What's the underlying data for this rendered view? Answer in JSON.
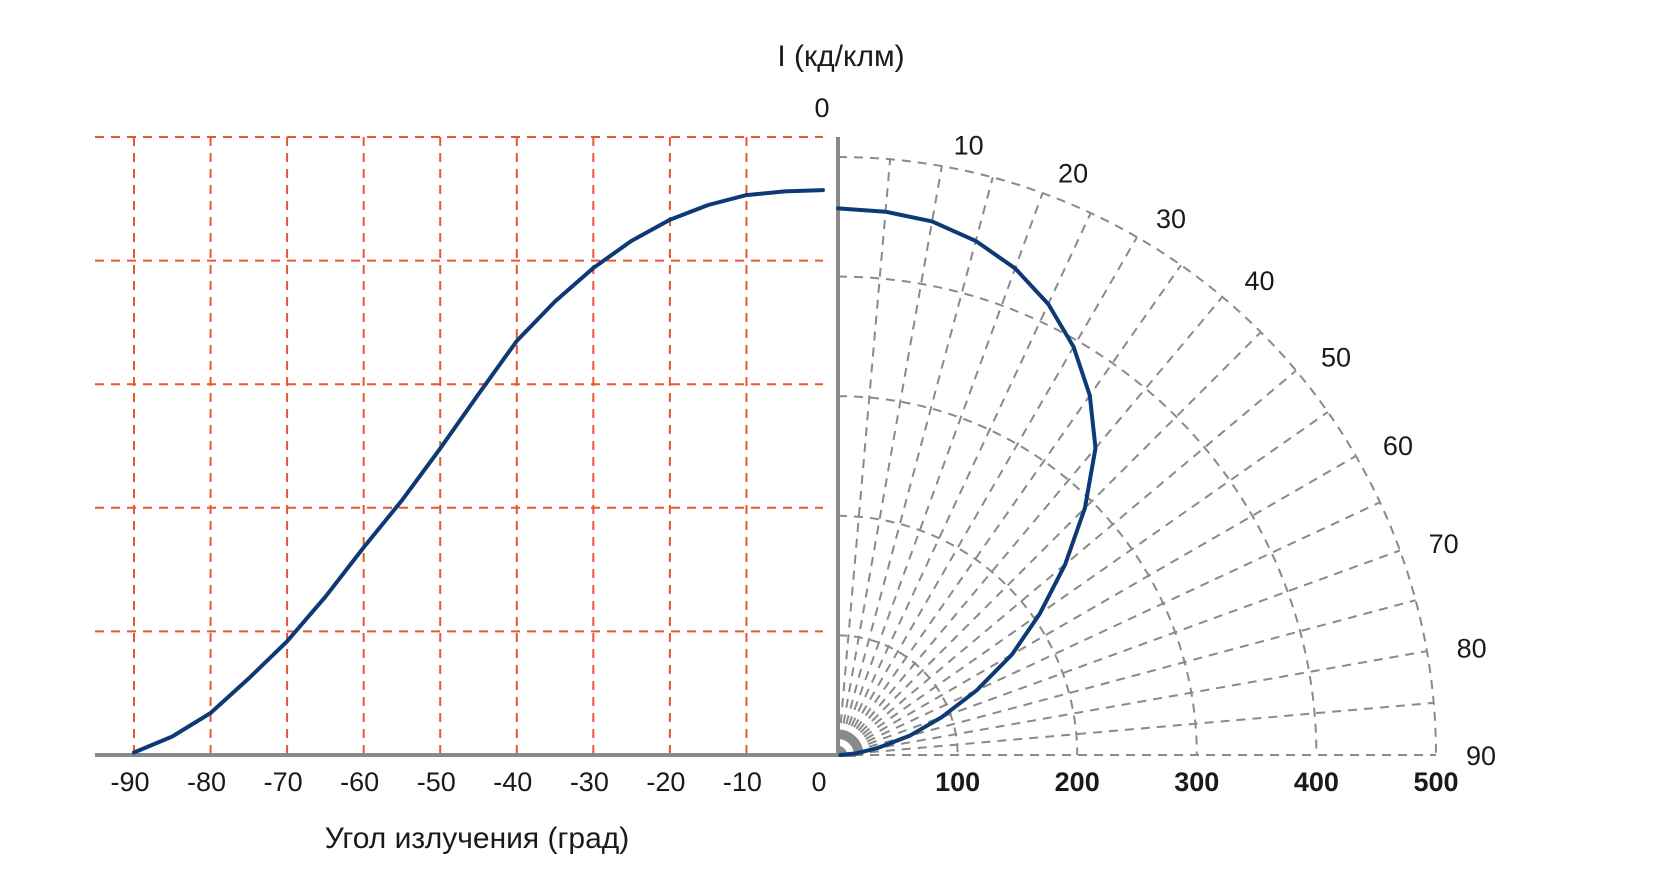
{
  "colors": {
    "curve": "#0d3a75",
    "cartesian_grid": "#e8572e",
    "polar_grid": "#8a8a8a",
    "axis": "#8a8a8a"
  },
  "chart_data": {
    "type": "line",
    "polar_and_cartesian": true,
    "ylabel": "I (кд/клм)",
    "xlabel": "Угол излучения (град)",
    "x_ticks": [
      "-90",
      "-80",
      "-70",
      "-60",
      "-50",
      "-40",
      "-30",
      "-20",
      "-10",
      "0"
    ],
    "radial_ticks": [
      "100",
      "200",
      "300",
      "400",
      "500"
    ],
    "angle_labels": [
      "0",
      "10",
      "20",
      "30",
      "40",
      "50",
      "60",
      "70",
      "80",
      "90"
    ],
    "xlim": [
      -90,
      0
    ],
    "ylim": [
      0,
      500
    ],
    "rlim": [
      0,
      500
    ],
    "cartesian_grid_x": [
      -90,
      -80,
      -70,
      -60,
      -50,
      -40,
      -30,
      -20,
      -10
    ],
    "cartesian_grid_y": [
      100,
      200,
      300,
      400,
      500
    ],
    "grid": true,
    "series": [
      {
        "x": [
          -90,
          -85,
          -80,
          -75,
          -70,
          -65,
          -60,
          -55,
          -50,
          -45,
          -40,
          -35,
          -30,
          -25,
          -20,
          -15,
          -10,
          -5,
          0
        ],
        "values": [
          2,
          15,
          34,
          62,
          92,
          128,
          168,
          206,
          248,
          292,
          335,
          367,
          394,
          416,
          433,
          445,
          453,
          456,
          457
        ]
      }
    ]
  }
}
